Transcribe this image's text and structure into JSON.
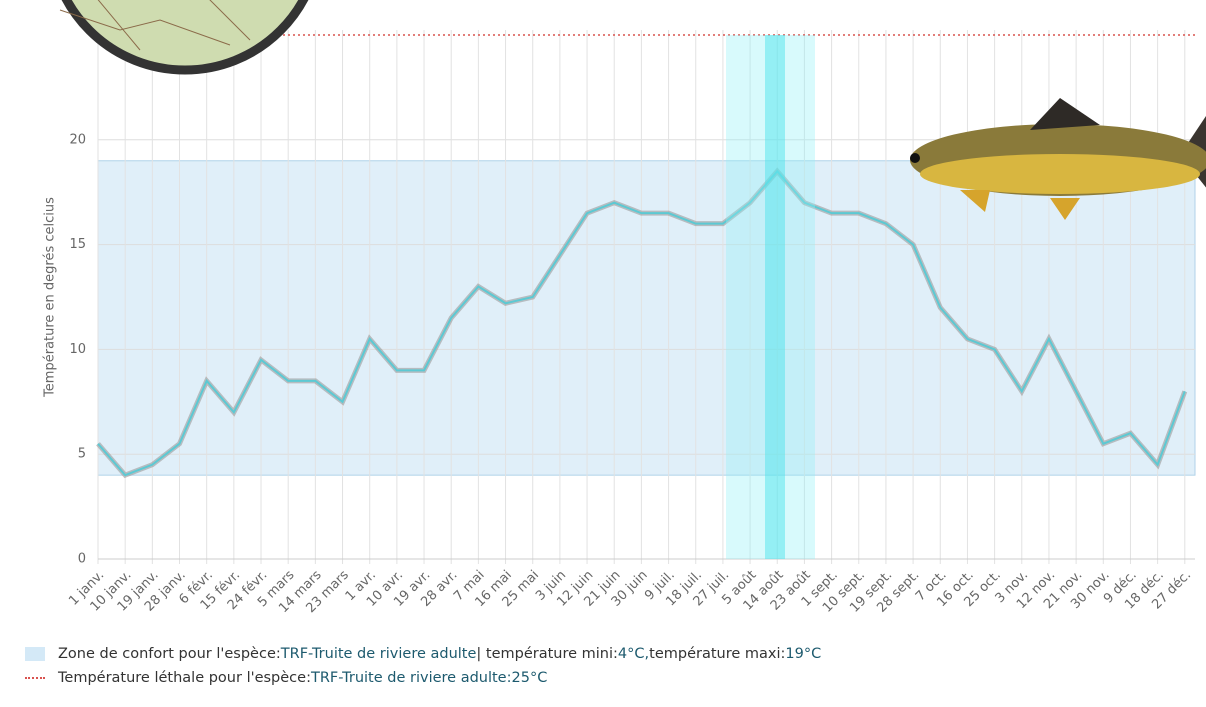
{
  "chart_data": {
    "type": "line",
    "y_label": "Température en degrés celcius",
    "categories": [
      "1 janv.",
      "10 janv.",
      "19 janv.",
      "28 janv.",
      "6 févr.",
      "15 févr.",
      "24 févr.",
      "5 mars",
      "14 mars",
      "23 mars",
      "1 avr.",
      "10 avr.",
      "19 avr.",
      "28 avr.",
      "7 mai",
      "16 mai",
      "25 mai",
      "3 juin",
      "12 juin",
      "21 juin",
      "30 juin",
      "9 juil.",
      "18 juil.",
      "27 juil.",
      "5 août",
      "14 août",
      "23 août",
      "1 sept.",
      "10 sept.",
      "19 sept.",
      "28 sept.",
      "7 oct.",
      "16 oct.",
      "25 oct.",
      "3 nov.",
      "12 nov.",
      "21 nov.",
      "30 nov.",
      "9 déc.",
      "18 déc.",
      "27 déc."
    ],
    "values": [
      5.5,
      4.0,
      4.5,
      5.5,
      8.5,
      7.0,
      9.5,
      8.5,
      8.5,
      7.5,
      10.5,
      9.0,
      9.0,
      11.5,
      13.0,
      12.2,
      12.5,
      14.5,
      16.5,
      17.0,
      16.5,
      16.5,
      16.0,
      16.0,
      17.0,
      18.5,
      17.0,
      16.5,
      16.5,
      16.0,
      15.0,
      12.0,
      10.5,
      10.0,
      8.0,
      10.5,
      8.0,
      5.5,
      6.0,
      4.5,
      8.0
    ],
    "color": "#5cc9d3",
    "ylim": [
      0,
      25
    ],
    "yticks": [
      0,
      5,
      10,
      15,
      20
    ],
    "grid": true,
    "comfort_zone": {
      "label": "Zone de confort pour l'espèce:",
      "species": "TRF-Truite de riviere adulte",
      "min_label": "| température mini:",
      "min": {
        "value": 4,
        "label": "4°C,"
      },
      "max_label": "température maxi:",
      "max": {
        "value": 19,
        "label": "19°C"
      },
      "color": "#d4e9f7"
    },
    "lethal": {
      "label": "Température léthale pour l'espèce:",
      "species": "TRF-Truite de riviere adulte",
      "separator": ":",
      "value": {
        "value": 25,
        "label": "25°C"
      },
      "color": "#d9534f"
    }
  }
}
